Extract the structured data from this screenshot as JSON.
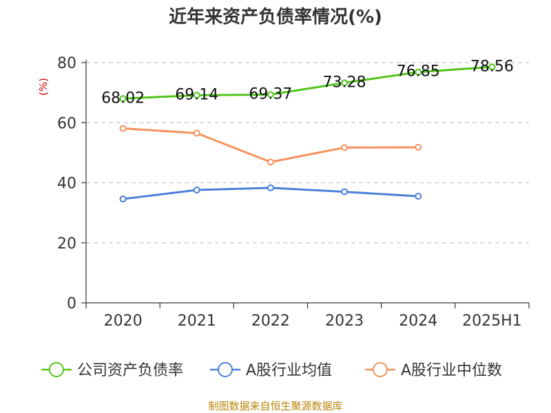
{
  "chart_data": {
    "type": "line",
    "title": "近年来资产负债率情况(%)",
    "ylabel": "(%)",
    "categories": [
      "2020",
      "2021",
      "2022",
      "2023",
      "2024",
      "2025H1"
    ],
    "yticks": [
      0,
      20,
      40,
      60,
      80
    ],
    "ylim": [
      0,
      80
    ],
    "grid": true,
    "legend_position": "bottom",
    "series": [
      {
        "name": "公司资产负债率",
        "color": "#52c41a",
        "values": [
          68.02,
          69.14,
          69.37,
          73.28,
          76.85,
          78.56
        ],
        "labels": [
          "68.02",
          "69.14",
          "69.37",
          "73.28",
          "76.85",
          "78.56"
        ]
      },
      {
        "name": "A股行业均值",
        "color": "#4a7fd8",
        "values": [
          34.6,
          37.6,
          38.3,
          37.0,
          35.5,
          null
        ]
      },
      {
        "name": "A股行业中位数",
        "color": "#f7905a",
        "values": [
          58.1,
          56.5,
          46.9,
          51.7,
          51.8,
          null
        ]
      }
    ],
    "source": "制图数据来自恒生聚源数据库"
  }
}
